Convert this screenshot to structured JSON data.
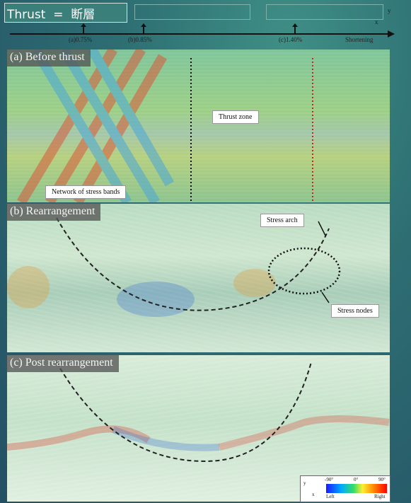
{
  "slide": {
    "title": "Thrust  =  断層"
  },
  "timeline": {
    "markers": [
      {
        "label": "(a)0.75%"
      },
      {
        "label": "(b)0.85%"
      },
      {
        "label": "(c)1.40%"
      }
    ],
    "end_label": "Shortening",
    "axis_labels": {
      "y": "y",
      "x": "x"
    }
  },
  "panels": {
    "a": {
      "label": "(a) Before thrust",
      "thrust_zone": "Thrust zone",
      "network": "Network of stress bands"
    },
    "b": {
      "label": "(b) Rearrangement",
      "stress_arch": "Stress arch",
      "stress_nodes": "Stress nodes"
    },
    "c": {
      "label": "(c) Post rearrangement"
    }
  },
  "legend": {
    "ticks": [
      "-90°",
      "0°",
      "90°"
    ],
    "ends": [
      "Left",
      "Right"
    ],
    "axis": {
      "y": "y",
      "x": "x"
    }
  },
  "colors": {
    "band_red": "#d9583a",
    "band_blue": "#4aa6d9",
    "dotted_red": "#cc2222"
  }
}
